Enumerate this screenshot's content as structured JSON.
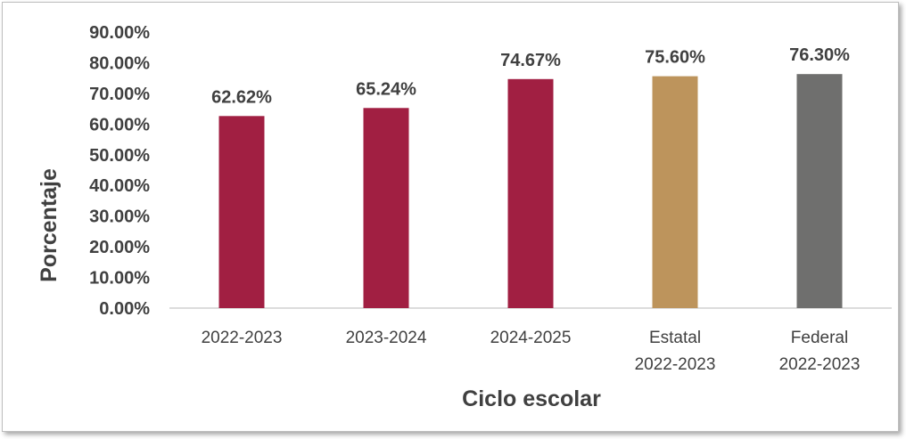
{
  "chart_data": {
    "type": "bar",
    "categories": [
      [
        "2022-2023"
      ],
      [
        "2023-2024"
      ],
      [
        "2024-2025"
      ],
      [
        "Estatal",
        "2022-2023"
      ],
      [
        "Federal",
        "2022-2023"
      ]
    ],
    "values": [
      62.62,
      65.24,
      74.67,
      75.6,
      76.3
    ],
    "data_labels": [
      "62.62%",
      "65.24%",
      "74.67%",
      "75.60%",
      "76.30%"
    ],
    "bar_colors": [
      "#a11f42",
      "#a11f42",
      "#a11f42",
      "#bd945c",
      "#6f6f6e"
    ],
    "title": "",
    "xlabel": "Ciclo escolar",
    "ylabel": "Porcentaje",
    "ylim": [
      0,
      90
    ],
    "y_ticks": [
      0,
      10,
      20,
      30,
      40,
      50,
      60,
      70,
      80,
      90
    ],
    "y_tick_labels": [
      "0.00%",
      "10.00%",
      "20.00%",
      "30.00%",
      "40.00%",
      "50.00%",
      "60.00%",
      "70.00%",
      "80.00%",
      "90.00%"
    ],
    "grid": false,
    "legend": "none"
  }
}
